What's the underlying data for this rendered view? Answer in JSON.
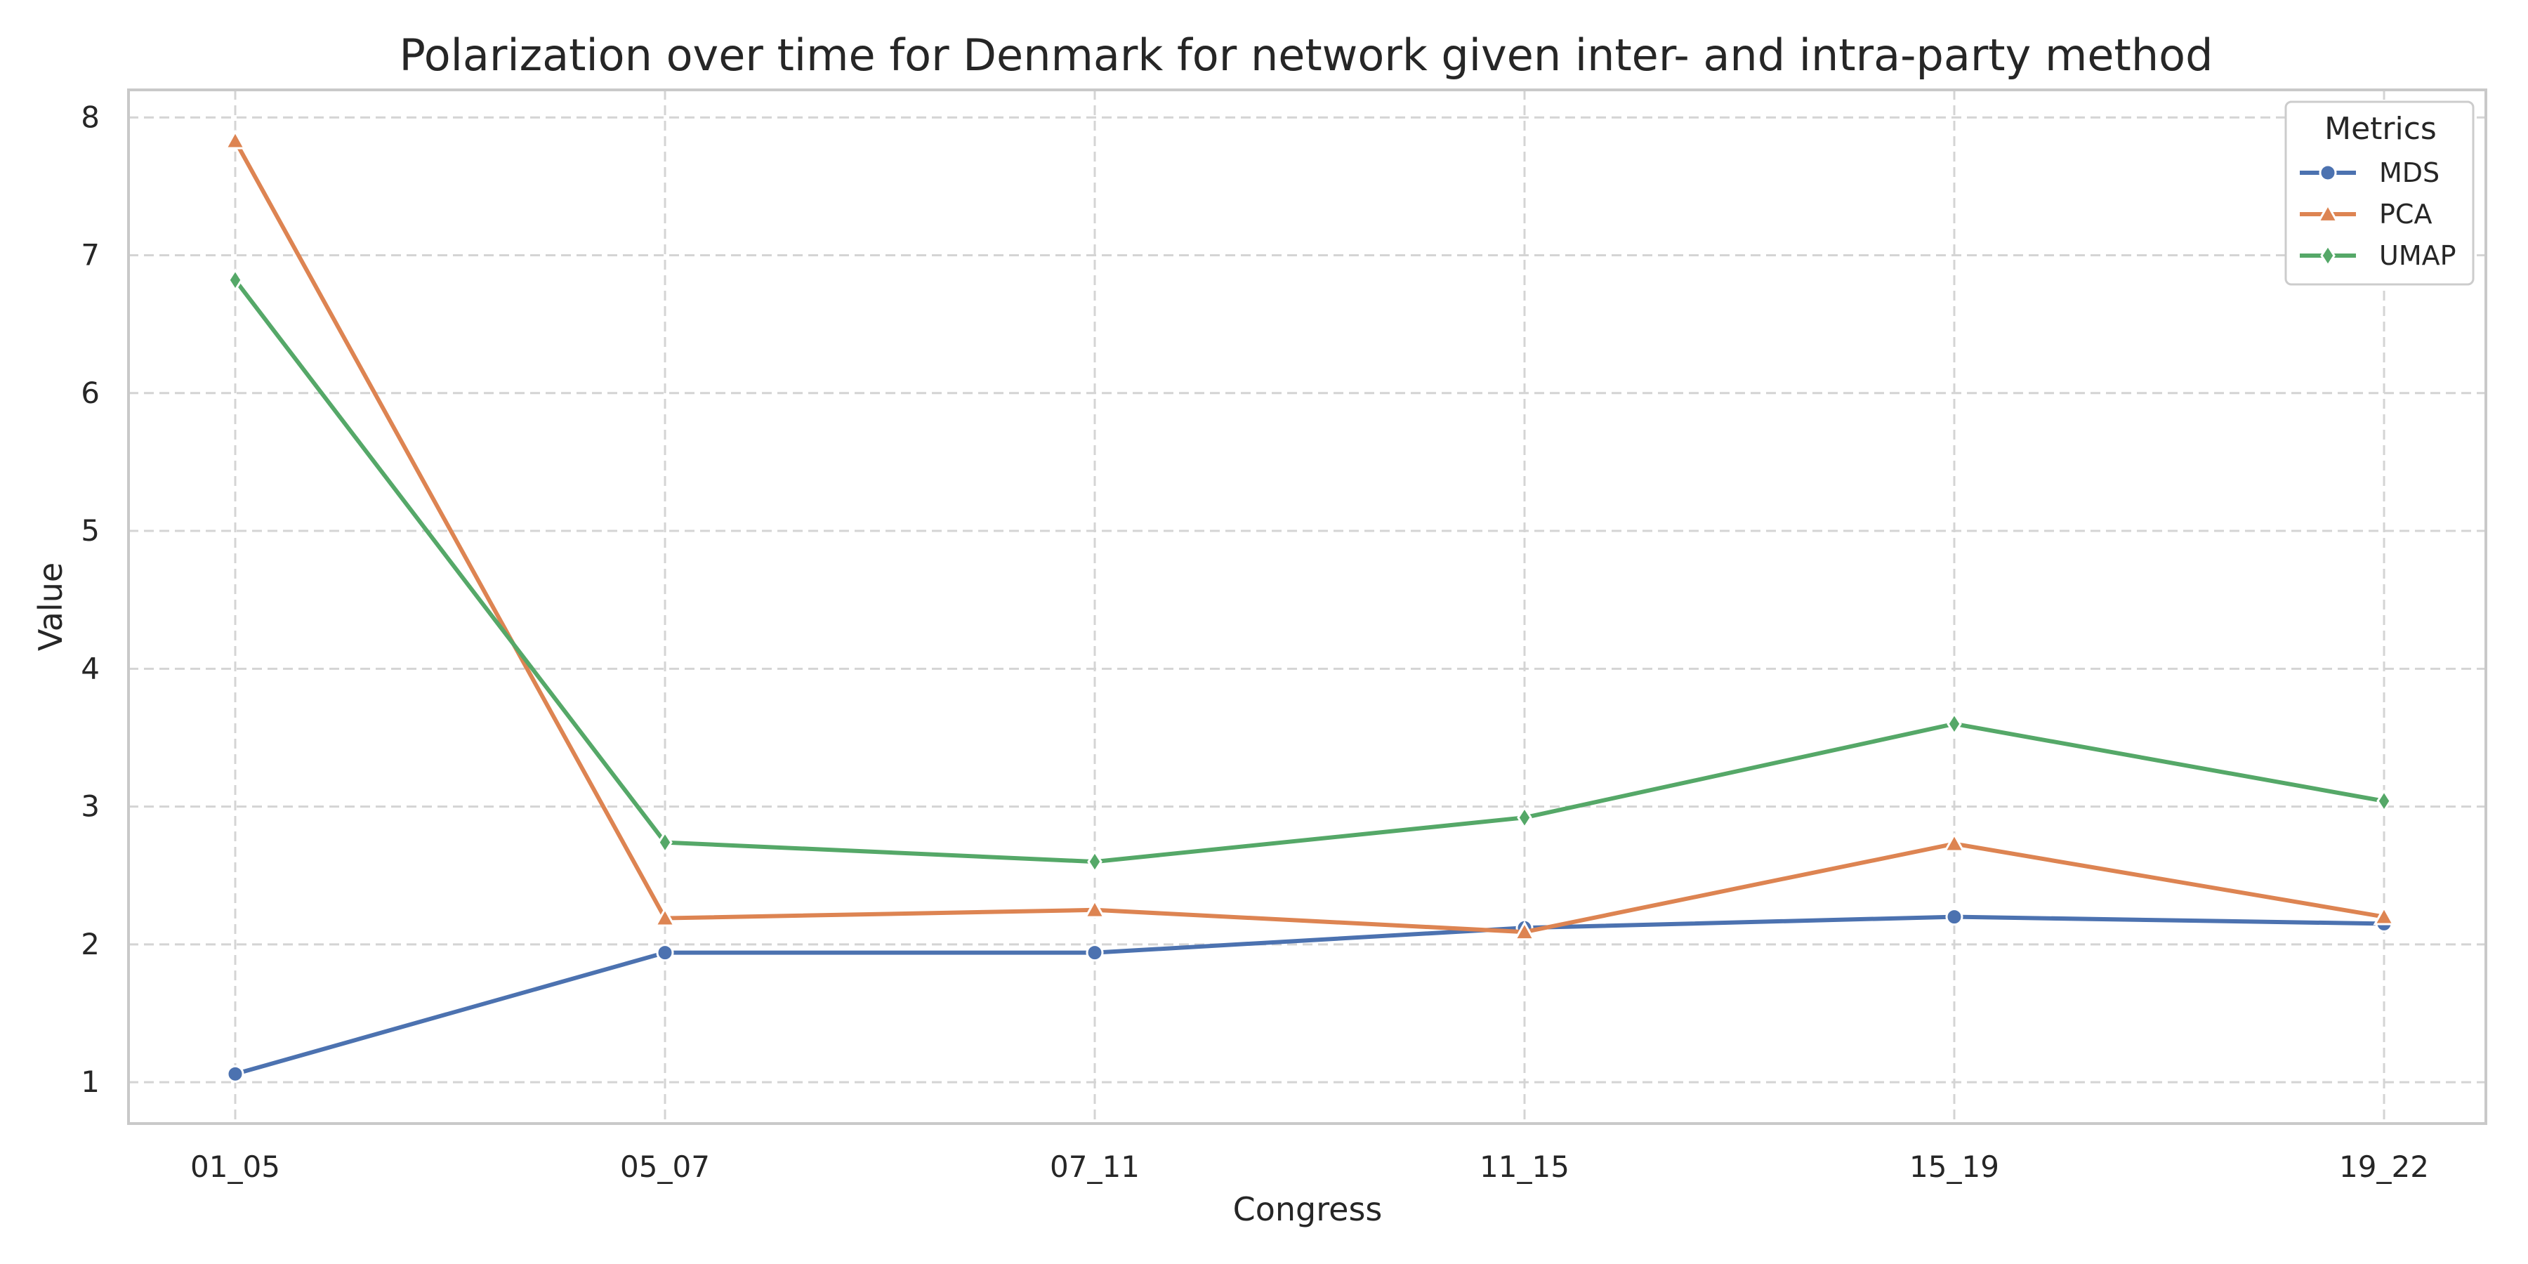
{
  "chart_data": {
    "type": "line",
    "title": "Polarization over time for Denmark for network given inter- and intra-party method",
    "xlabel": "Congress",
    "ylabel": "Value",
    "categories": [
      "01_05",
      "05_07",
      "07_11",
      "11_15",
      "15_19",
      "19_22"
    ],
    "ylim": [
      0.7,
      8.2
    ],
    "yticks": [
      1,
      2,
      3,
      4,
      5,
      6,
      7,
      8
    ],
    "grid": true,
    "legend": {
      "title": "Metrics",
      "placement": "top-right"
    },
    "series": [
      {
        "name": "MDS",
        "marker": "circle",
        "color": "#4c72b0",
        "values": [
          1.06,
          1.94,
          1.94,
          2.12,
          2.2,
          2.15
        ]
      },
      {
        "name": "PCA",
        "marker": "triangle",
        "color": "#dd8452",
        "values": [
          7.83,
          2.19,
          2.25,
          2.09,
          2.73,
          2.2
        ]
      },
      {
        "name": "UMAP",
        "marker": "diamond",
        "color": "#55a868",
        "values": [
          6.82,
          2.74,
          2.6,
          2.92,
          3.6,
          3.04
        ]
      }
    ]
  }
}
